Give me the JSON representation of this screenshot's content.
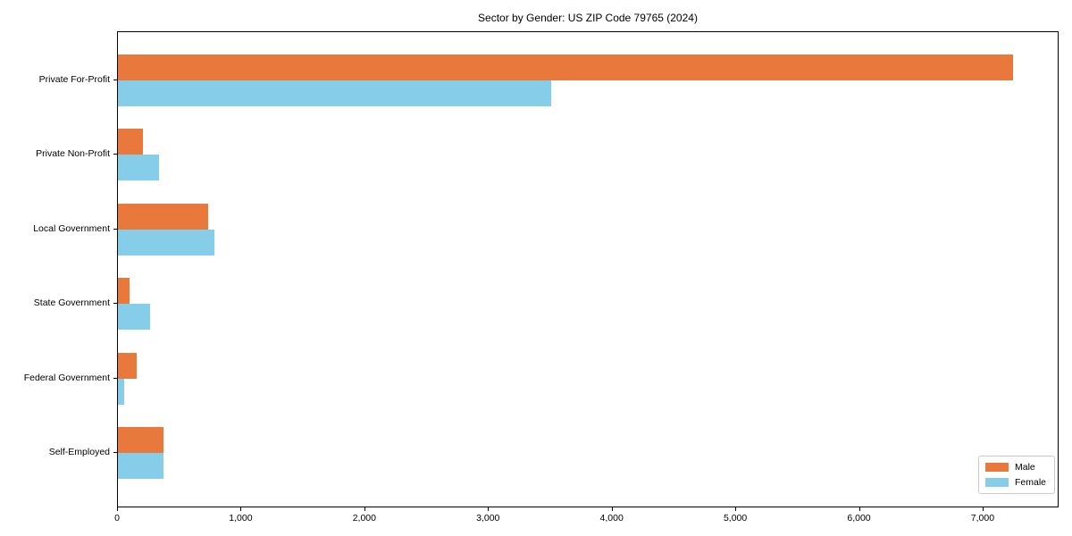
{
  "chart_data": {
    "type": "bar",
    "orientation": "horizontal",
    "title": "Sector by Gender: US ZIP Code 79765 (2024)",
    "xlabel": "",
    "ylabel": "",
    "categories": [
      "Private For-Profit",
      "Private Non-Profit",
      "Local Government",
      "State Government",
      "Federal Government",
      "Self-Employed"
    ],
    "series": [
      {
        "name": "Male",
        "color": "#e8783c",
        "values": [
          7240,
          205,
          733,
          94,
          149,
          366
        ]
      },
      {
        "name": "Female",
        "color": "#85cde8",
        "values": [
          3505,
          329,
          781,
          257,
          48,
          365
        ]
      }
    ],
    "xlim": [
      0,
      7600
    ],
    "xticks": [
      0,
      1000,
      2000,
      3000,
      4000,
      5000,
      6000,
      7000
    ],
    "xtick_labels": [
      "0",
      "1,000",
      "2,000",
      "3,000",
      "4,000",
      "5,000",
      "6,000",
      "7,000"
    ],
    "legend_position": "lower right",
    "grid": false,
    "background_color": "#ffffff",
    "spine_color": "#000000"
  }
}
